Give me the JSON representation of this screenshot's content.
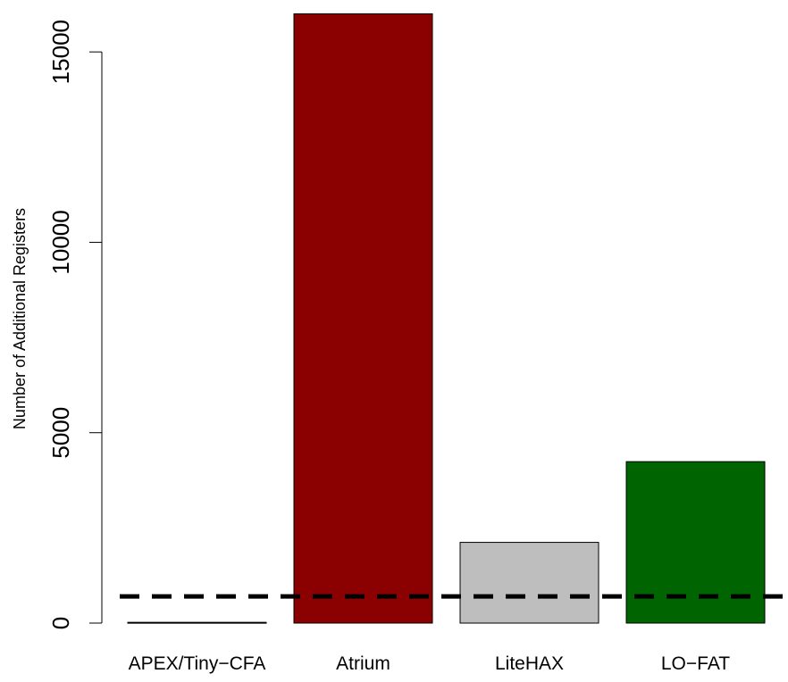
{
  "chart_data": {
    "type": "bar",
    "categories": [
      "APEX/Tiny−CFA",
      "Atrium",
      "LiteHAX",
      "LO−FAT"
    ],
    "values": [
      20,
      16000,
      2120,
      4240
    ],
    "bar_colors": [
      "#ffffff",
      "#8b0000",
      "#bebebe",
      "#006400"
    ],
    "ylabel": "Number of Additional Registers",
    "xlabel": "",
    "title": "",
    "ylim": [
      0,
      16000
    ],
    "yticks": [
      0,
      5000,
      10000,
      15000
    ],
    "ytick_labels": [
      "0",
      "5000",
      "10000",
      "15000"
    ],
    "reference_line": {
      "value": 700,
      "style": "dashed",
      "color": "#000000"
    },
    "grid": false,
    "legend": "none"
  }
}
